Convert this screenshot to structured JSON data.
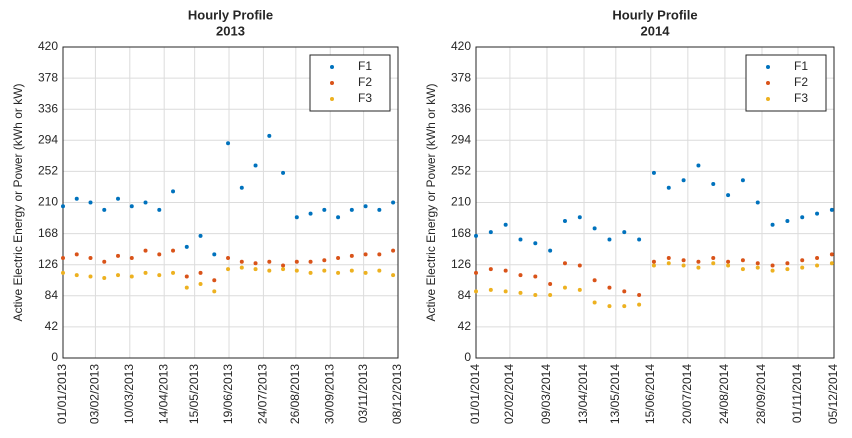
{
  "chart_data": [
    {
      "type": "scatter",
      "title": "Hourly Profile",
      "subtitle": "2013",
      "y_label": "Active Electric Energy or Power (kWh or kW)",
      "x": [
        "01/01/2013",
        "15/01/2013",
        "29/01/2013",
        "12/02/2013",
        "26/02/2013",
        "12/03/2013",
        "26/03/2013",
        "09/04/2013",
        "23/04/2013",
        "07/05/2013",
        "21/05/2013",
        "04/06/2013",
        "18/06/2013",
        "02/07/2013",
        "16/07/2013",
        "30/07/2013",
        "13/08/2013",
        "27/08/2013",
        "10/09/2013",
        "24/09/2013",
        "08/10/2013",
        "22/10/2013",
        "05/11/2013",
        "19/11/2013",
        "03/12/2013"
      ],
      "series": [
        {
          "name": "F1",
          "color": "#0072bd",
          "values": [
            205,
            215,
            210,
            200,
            215,
            205,
            210,
            200,
            225,
            150,
            165,
            140,
            290,
            230,
            260,
            300,
            250,
            190,
            195,
            200,
            190,
            200,
            205,
            200,
            210
          ]
        },
        {
          "name": "F2",
          "color": "#d95319",
          "values": [
            135,
            140,
            135,
            130,
            138,
            135,
            145,
            140,
            145,
            110,
            115,
            105,
            135,
            130,
            128,
            130,
            125,
            130,
            130,
            132,
            135,
            138,
            140,
            140,
            145
          ]
        },
        {
          "name": "F3",
          "color": "#edb120",
          "values": [
            115,
            112,
            110,
            108,
            112,
            110,
            115,
            112,
            115,
            95,
            100,
            90,
            120,
            122,
            120,
            118,
            120,
            118,
            115,
            118,
            115,
            118,
            115,
            118,
            112
          ]
        }
      ],
      "xlim": [
        "01/01/2013",
        "08/12/2013"
      ],
      "xticks": [
        "01/01/2013",
        "03/02/2013",
        "10/03/2013",
        "14/04/2013",
        "15/05/2013",
        "19/06/2013",
        "24/07/2013",
        "26/08/2013",
        "30/09/2013",
        "03/11/2013",
        "08/12/2013"
      ],
      "ylim": [
        0,
        420
      ],
      "yticks": [
        0,
        42,
        84,
        126,
        168,
        210,
        252,
        294,
        336,
        378,
        420
      ],
      "grid": true,
      "legend": "top-right"
    },
    {
      "type": "scatter",
      "title": "Hourly Profile",
      "subtitle": "2014",
      "y_label": "Active Electric Energy or Power (kWh or kW)",
      "x": [
        "01/01/2014",
        "15/01/2014",
        "29/01/2014",
        "12/02/2014",
        "26/02/2014",
        "12/03/2014",
        "26/03/2014",
        "09/04/2014",
        "23/04/2014",
        "07/05/2014",
        "21/05/2014",
        "04/06/2014",
        "18/06/2014",
        "02/07/2014",
        "16/07/2014",
        "30/07/2014",
        "13/08/2014",
        "27/08/2014",
        "10/09/2014",
        "24/09/2014",
        "08/10/2014",
        "22/10/2014",
        "05/11/2014",
        "19/11/2014",
        "03/12/2014"
      ],
      "series": [
        {
          "name": "F1",
          "color": "#0072bd",
          "values": [
            165,
            170,
            180,
            160,
            155,
            145,
            185,
            190,
            175,
            160,
            170,
            160,
            250,
            230,
            240,
            260,
            235,
            220,
            240,
            210,
            180,
            185,
            190,
            195,
            200
          ]
        },
        {
          "name": "F2",
          "color": "#d95319",
          "values": [
            115,
            120,
            118,
            112,
            110,
            100,
            128,
            125,
            105,
            95,
            90,
            85,
            130,
            135,
            132,
            130,
            135,
            130,
            132,
            128,
            125,
            128,
            132,
            135,
            140
          ]
        },
        {
          "name": "F3",
          "color": "#edb120",
          "values": [
            90,
            92,
            90,
            88,
            85,
            85,
            95,
            92,
            75,
            70,
            70,
            72,
            125,
            128,
            125,
            122,
            128,
            125,
            120,
            122,
            118,
            120,
            122,
            125,
            128
          ]
        }
      ],
      "xlim": [
        "01/01/2014",
        "05/12/2014"
      ],
      "xticks": [
        "01/01/2014",
        "02/02/2014",
        "09/03/2014",
        "13/04/2014",
        "13/05/2014",
        "15/06/2014",
        "20/07/2014",
        "24/08/2014",
        "28/09/2014",
        "01/11/2014",
        "05/12/2014"
      ],
      "ylim": [
        0,
        420
      ],
      "yticks": [
        0,
        42,
        84,
        126,
        168,
        210,
        252,
        294,
        336,
        378,
        420
      ],
      "grid": true,
      "legend": "top-right"
    }
  ]
}
